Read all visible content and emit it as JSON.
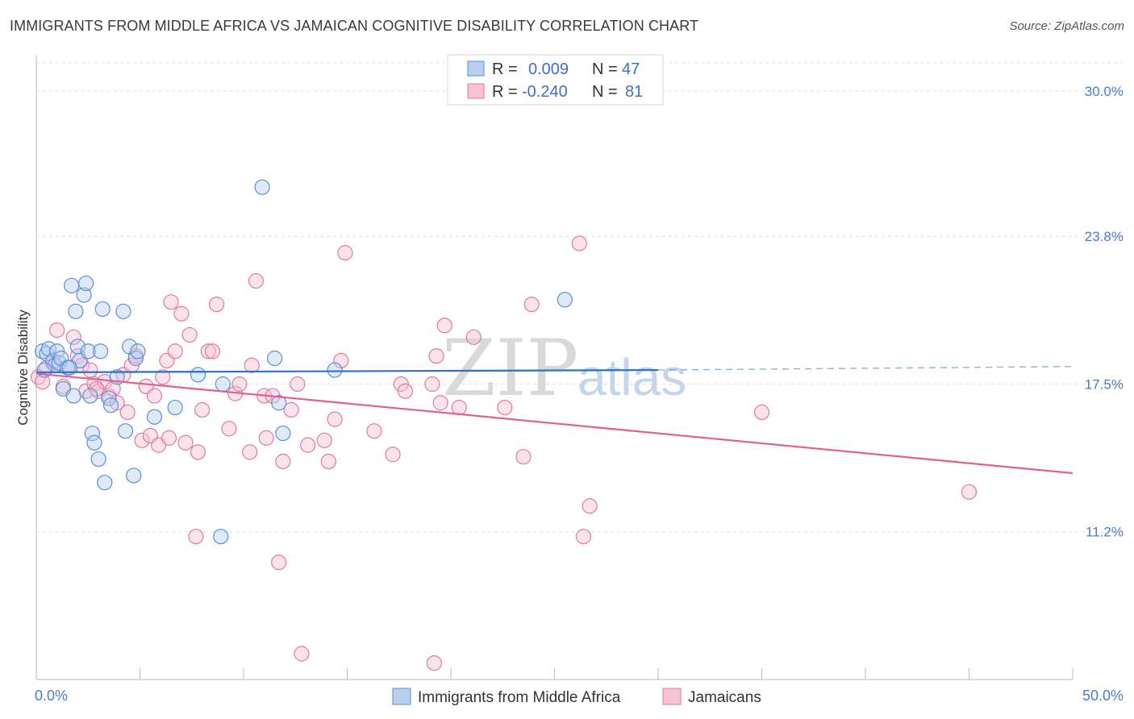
{
  "title": "IMMIGRANTS FROM MIDDLE AFRICA VS JAMAICAN COGNITIVE DISABILITY CORRELATION CHART",
  "source": "Source: ZipAtlas.com",
  "watermark": {
    "zip": "ZIP",
    "atlas": "atlas"
  },
  "legend": {
    "row1": {
      "r_label": "R =",
      "r_value": "0.009",
      "n_label": "N =",
      "n_value": "47"
    },
    "row2": {
      "r_label": "R =",
      "r_value": "-0.240",
      "n_label": "N =",
      "n_value": "81"
    }
  },
  "bottom_legend": [
    "Immigrants from Middle Africa",
    "Jamaicans"
  ],
  "colors": {
    "blue": "#5b8fd6",
    "blue_fill": "#b9cff0",
    "blue_line": "#2f6fc9",
    "pink": "#e07aa0",
    "pink_fill": "#f6c2d4",
    "pink_line": "#e0608e",
    "grid": "#dddddd",
    "axis": "#bbbbbb"
  },
  "chart_data": {
    "type": "scatter",
    "title": "IMMIGRANTS FROM MIDDLE AFRICA VS JAMAICAN COGNITIVE DISABILITY CORRELATION CHART",
    "xlabel": "",
    "ylabel": "Cognitive Disability",
    "xlim": [
      0,
      50
    ],
    "ylim": [
      4.9,
      31.2
    ],
    "x_tick_labels": [
      "0.0%",
      "50.0%"
    ],
    "y_ticks": [
      11.2,
      17.5,
      23.8,
      30.0
    ],
    "y_tick_labels": [
      "11.2%",
      "17.5%",
      "23.8%",
      "30.0%"
    ],
    "grid": true,
    "legend_placement": "top-center",
    "series": [
      {
        "name": "Immigrants from Middle Africa",
        "color": "#5b8fd6",
        "trend": {
          "x": [
            0,
            30
          ],
          "y": [
            18.0,
            18.1
          ],
          "dashed_to_x": 50,
          "dashed_y": 18.25
        },
        "points": [
          [
            0.3,
            18.9
          ],
          [
            0.5,
            18.8
          ],
          [
            0.6,
            19.0
          ],
          [
            0.8,
            18.5
          ],
          [
            0.9,
            18.3
          ],
          [
            1.0,
            18.9
          ],
          [
            1.1,
            18.4
          ],
          [
            1.2,
            18.6
          ],
          [
            1.3,
            17.3
          ],
          [
            1.5,
            18.2
          ],
          [
            1.7,
            21.7
          ],
          [
            1.8,
            17.0
          ],
          [
            1.9,
            20.6
          ],
          [
            2.0,
            19.1
          ],
          [
            2.1,
            18.5
          ],
          [
            2.3,
            21.3
          ],
          [
            2.4,
            21.8
          ],
          [
            2.5,
            18.9
          ],
          [
            2.6,
            17.0
          ],
          [
            2.7,
            15.4
          ],
          [
            2.8,
            15.0
          ],
          [
            3.0,
            14.3
          ],
          [
            3.1,
            18.9
          ],
          [
            3.2,
            20.7
          ],
          [
            3.3,
            13.3
          ],
          [
            3.5,
            16.9
          ],
          [
            3.6,
            16.6
          ],
          [
            3.9,
            17.8
          ],
          [
            4.2,
            20.6
          ],
          [
            4.3,
            15.5
          ],
          [
            4.5,
            19.1
          ],
          [
            4.7,
            13.6
          ],
          [
            4.8,
            18.6
          ],
          [
            4.9,
            18.9
          ],
          [
            5.7,
            16.1
          ],
          [
            6.7,
            16.5
          ],
          [
            7.8,
            17.9
          ],
          [
            8.9,
            11.0
          ],
          [
            9.0,
            17.5
          ],
          [
            10.9,
            25.9
          ],
          [
            11.5,
            18.6
          ],
          [
            11.7,
            16.7
          ],
          [
            11.9,
            15.4
          ],
          [
            14.4,
            18.1
          ],
          [
            25.5,
            21.1
          ],
          [
            0.4,
            18.1
          ],
          [
            1.6,
            18.2
          ]
        ]
      },
      {
        "name": "Jamaicans",
        "color": "#e07aa0",
        "trend": {
          "x": [
            0,
            50
          ],
          "y": [
            17.95,
            13.7
          ]
        },
        "points": [
          [
            0.1,
            17.8
          ],
          [
            0.5,
            18.2
          ],
          [
            0.8,
            18.4
          ],
          [
            1.0,
            19.8
          ],
          [
            1.3,
            17.4
          ],
          [
            1.6,
            18.2
          ],
          [
            1.8,
            19.5
          ],
          [
            2.0,
            18.7
          ],
          [
            2.2,
            18.3
          ],
          [
            2.4,
            17.2
          ],
          [
            2.6,
            18.1
          ],
          [
            2.8,
            17.5
          ],
          [
            3.0,
            17.2
          ],
          [
            3.3,
            17.6
          ],
          [
            3.5,
            17.0
          ],
          [
            3.7,
            17.3
          ],
          [
            3.9,
            16.7
          ],
          [
            4.2,
            17.9
          ],
          [
            4.4,
            16.3
          ],
          [
            4.6,
            18.3
          ],
          [
            4.8,
            18.7
          ],
          [
            5.1,
            15.1
          ],
          [
            5.3,
            17.4
          ],
          [
            5.5,
            15.3
          ],
          [
            5.7,
            17.0
          ],
          [
            5.9,
            14.9
          ],
          [
            6.1,
            17.8
          ],
          [
            6.3,
            18.5
          ],
          [
            6.4,
            15.2
          ],
          [
            6.5,
            21.0
          ],
          [
            6.7,
            18.9
          ],
          [
            7.0,
            20.5
          ],
          [
            7.2,
            15.0
          ],
          [
            7.4,
            19.6
          ],
          [
            7.7,
            11.0
          ],
          [
            7.8,
            14.6
          ],
          [
            8.0,
            16.4
          ],
          [
            8.3,
            18.9
          ],
          [
            8.5,
            18.9
          ],
          [
            8.7,
            20.9
          ],
          [
            9.3,
            15.6
          ],
          [
            9.6,
            17.1
          ],
          [
            9.8,
            17.5
          ],
          [
            10.3,
            14.6
          ],
          [
            10.4,
            18.3
          ],
          [
            10.6,
            21.9
          ],
          [
            11.0,
            17.0
          ],
          [
            11.1,
            15.2
          ],
          [
            11.4,
            17.0
          ],
          [
            11.7,
            9.9
          ],
          [
            11.9,
            14.2
          ],
          [
            12.3,
            16.4
          ],
          [
            12.6,
            17.5
          ],
          [
            12.8,
            6.0
          ],
          [
            13.1,
            14.9
          ],
          [
            13.9,
            15.1
          ],
          [
            14.1,
            14.2
          ],
          [
            14.4,
            16.0
          ],
          [
            14.7,
            18.5
          ],
          [
            14.9,
            23.1
          ],
          [
            16.3,
            15.5
          ],
          [
            17.2,
            14.5
          ],
          [
            17.6,
            17.5
          ],
          [
            17.8,
            17.2
          ],
          [
            19.1,
            17.5
          ],
          [
            19.2,
            5.6
          ],
          [
            19.3,
            18.7
          ],
          [
            19.5,
            16.7
          ],
          [
            19.7,
            20.0
          ],
          [
            20.4,
            16.5
          ],
          [
            21.1,
            19.5
          ],
          [
            22.6,
            16.5
          ],
          [
            23.5,
            14.4
          ],
          [
            23.9,
            20.9
          ],
          [
            26.2,
            23.5
          ],
          [
            26.4,
            11.0
          ],
          [
            26.7,
            12.3
          ],
          [
            35.0,
            16.3
          ],
          [
            45.0,
            12.9
          ],
          [
            0.3,
            17.6
          ],
          [
            2.9,
            17.3
          ]
        ]
      }
    ]
  }
}
